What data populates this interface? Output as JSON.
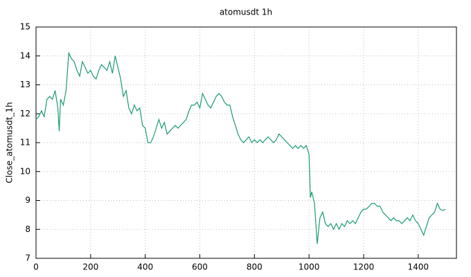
{
  "chart_data": {
    "type": "line",
    "title": "atomusdt 1h",
    "y_label": "Close_atomusdt_1h",
    "xlim": [
      0,
      1540
    ],
    "xticks": [
      0,
      200,
      400,
      600,
      800,
      1000,
      1200,
      1400
    ],
    "ylim": [
      7,
      15
    ],
    "yticks": [
      7,
      8,
      9,
      10,
      11,
      12,
      13,
      14,
      15
    ],
    "grid": true,
    "series": [
      {
        "name": "Close_atomusdt_1h",
        "color": "#1a9a73",
        "x": [
          0,
          10,
          20,
          30,
          40,
          50,
          60,
          70,
          80,
          85,
          90,
          100,
          110,
          120,
          130,
          140,
          150,
          160,
          170,
          180,
          190,
          200,
          210,
          220,
          230,
          240,
          250,
          260,
          270,
          280,
          290,
          300,
          310,
          320,
          330,
          340,
          350,
          360,
          370,
          380,
          390,
          400,
          410,
          420,
          430,
          440,
          450,
          460,
          470,
          480,
          490,
          500,
          510,
          520,
          530,
          540,
          550,
          560,
          570,
          580,
          590,
          600,
          610,
          620,
          630,
          640,
          650,
          660,
          670,
          680,
          690,
          700,
          710,
          720,
          730,
          740,
          750,
          760,
          770,
          780,
          790,
          800,
          810,
          820,
          830,
          840,
          850,
          860,
          870,
          880,
          890,
          900,
          910,
          920,
          930,
          940,
          950,
          960,
          970,
          980,
          990,
          1000,
          1005,
          1010,
          1020,
          1030,
          1040,
          1050,
          1060,
          1070,
          1080,
          1090,
          1100,
          1110,
          1120,
          1130,
          1140,
          1150,
          1160,
          1170,
          1180,
          1190,
          1200,
          1210,
          1220,
          1230,
          1240,
          1250,
          1260,
          1270,
          1280,
          1290,
          1300,
          1310,
          1320,
          1330,
          1340,
          1350,
          1360,
          1370,
          1380,
          1390,
          1400,
          1410,
          1420,
          1430,
          1440,
          1450,
          1460,
          1470,
          1480,
          1490,
          1500
        ],
        "values": [
          11.8,
          11.9,
          12.1,
          11.9,
          12.5,
          12.6,
          12.5,
          12.8,
          12.2,
          11.4,
          12.5,
          12.3,
          12.8,
          14.1,
          13.9,
          13.8,
          13.5,
          13.3,
          13.8,
          13.6,
          13.4,
          13.5,
          13.3,
          13.2,
          13.5,
          13.7,
          13.6,
          13.5,
          13.8,
          13.4,
          14.0,
          13.6,
          13.2,
          12.6,
          12.8,
          12.2,
          12.0,
          12.3,
          12.1,
          12.2,
          11.6,
          11.5,
          11.0,
          11.0,
          11.2,
          11.5,
          11.8,
          11.5,
          11.7,
          11.3,
          11.4,
          11.5,
          11.6,
          11.5,
          11.6,
          11.7,
          11.8,
          12.1,
          12.3,
          12.3,
          12.4,
          12.2,
          12.7,
          12.5,
          12.3,
          12.2,
          12.4,
          12.6,
          12.7,
          12.6,
          12.4,
          12.3,
          12.3,
          11.9,
          11.6,
          11.3,
          11.1,
          11.0,
          11.1,
          11.2,
          11.0,
          11.1,
          11.0,
          11.1,
          11.0,
          11.1,
          11.2,
          11.1,
          11.0,
          11.1,
          11.3,
          11.2,
          11.1,
          11.0,
          10.9,
          10.8,
          10.9,
          10.8,
          10.9,
          10.8,
          10.9,
          10.6,
          9.1,
          9.3,
          8.9,
          7.5,
          8.4,
          8.6,
          8.2,
          8.1,
          8.2,
          8.0,
          8.2,
          8.0,
          8.2,
          8.1,
          8.3,
          8.2,
          8.3,
          8.2,
          8.4,
          8.6,
          8.7,
          8.7,
          8.8,
          8.9,
          8.9,
          8.8,
          8.8,
          8.6,
          8.5,
          8.4,
          8.3,
          8.4,
          8.3,
          8.3,
          8.2,
          8.3,
          8.4,
          8.3,
          8.5,
          8.3,
          8.2,
          8.0,
          7.8,
          8.1,
          8.4,
          8.5,
          8.6,
          8.9,
          8.7,
          8.65,
          8.7
        ]
      }
    ]
  }
}
